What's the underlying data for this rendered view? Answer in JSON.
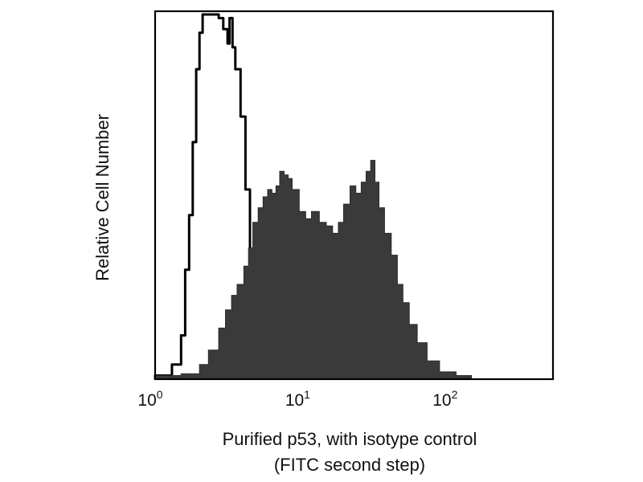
{
  "chart_data": {
    "type": "area",
    "x_scale": "log",
    "xlim": [
      1,
      500
    ],
    "ylim": [
      0,
      100
    ],
    "grid": false,
    "legend": "none",
    "xlabel": [
      "Purified p53, with isotype control",
      "(FITC second step)"
    ],
    "ylabel": "Relative Cell Number",
    "ticks": [
      {
        "base": "10",
        "exp": "0",
        "value": 1
      },
      {
        "base": "10",
        "exp": "1",
        "value": 10
      },
      {
        "base": "10",
        "exp": "2",
        "value": 100
      }
    ],
    "series": [
      {
        "style": "outline",
        "color": "#000000",
        "points": [
          [
            1.0,
            1
          ],
          [
            1.3,
            4
          ],
          [
            1.5,
            12
          ],
          [
            1.6,
            30
          ],
          [
            1.7,
            45
          ],
          [
            1.8,
            65
          ],
          [
            1.9,
            85
          ],
          [
            2.0,
            95
          ],
          [
            2.1,
            100
          ],
          [
            2.5,
            100
          ],
          [
            2.7,
            99
          ],
          [
            2.9,
            96
          ],
          [
            3.1,
            92
          ],
          [
            3.2,
            99
          ],
          [
            3.35,
            91
          ],
          [
            3.5,
            85
          ],
          [
            3.8,
            72
          ],
          [
            4.1,
            52
          ],
          [
            4.4,
            34
          ],
          [
            4.7,
            18
          ],
          [
            5.0,
            10
          ],
          [
            5.4,
            5
          ],
          [
            5.8,
            2
          ],
          [
            6.5,
            0.5
          ],
          [
            7.5,
            0
          ]
        ]
      },
      {
        "style": "filled",
        "color": "#3a3a3a",
        "points": [
          [
            1.0,
            1
          ],
          [
            1.5,
            1.5
          ],
          [
            2.0,
            4
          ],
          [
            2.3,
            8
          ],
          [
            2.7,
            14
          ],
          [
            3.0,
            19
          ],
          [
            3.3,
            23
          ],
          [
            3.6,
            26
          ],
          [
            4.0,
            31
          ],
          [
            4.3,
            36
          ],
          [
            4.6,
            43
          ],
          [
            5.0,
            47
          ],
          [
            5.4,
            50
          ],
          [
            5.8,
            52
          ],
          [
            6.2,
            51
          ],
          [
            6.6,
            53
          ],
          [
            7.0,
            57
          ],
          [
            7.5,
            56
          ],
          [
            8.0,
            55
          ],
          [
            8.5,
            52
          ],
          [
            9.5,
            46
          ],
          [
            10.5,
            44
          ],
          [
            11.5,
            46
          ],
          [
            13.0,
            43
          ],
          [
            14.5,
            42
          ],
          [
            16.0,
            40
          ],
          [
            17.5,
            43
          ],
          [
            19.0,
            48
          ],
          [
            21.0,
            53
          ],
          [
            23.0,
            51
          ],
          [
            25.0,
            54
          ],
          [
            27.0,
            57
          ],
          [
            29.0,
            60
          ],
          [
            31.0,
            54
          ],
          [
            33.0,
            47
          ],
          [
            36.0,
            40
          ],
          [
            40.0,
            34
          ],
          [
            44.0,
            26
          ],
          [
            48.0,
            21
          ],
          [
            53.0,
            15
          ],
          [
            60.0,
            10
          ],
          [
            70.0,
            5
          ],
          [
            85.0,
            2
          ],
          [
            110.0,
            1
          ],
          [
            140.0,
            0
          ]
        ]
      }
    ]
  }
}
